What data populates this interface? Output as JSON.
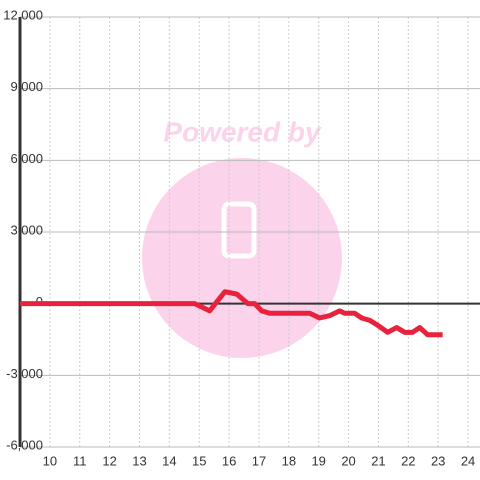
{
  "chart_data": {
    "type": "line",
    "watermark": "Powered by",
    "x": [
      9,
      14.85,
      15.35,
      15.86,
      16.26,
      16.63,
      16.86,
      17.09,
      17.36,
      18.7,
      19.03,
      19.37,
      19.7,
      19.87,
      20.2,
      20.44,
      20.71,
      20.97,
      21.31,
      21.61,
      21.88,
      22.14,
      22.38,
      22.65,
      23.15
    ],
    "series": [
      {
        "color": "#e8223d",
        "values": [
          0,
          0,
          -300,
          500,
          400,
          0,
          0,
          -300,
          -400,
          -400,
          -600,
          -500,
          -300,
          -400,
          -400,
          -600,
          -700,
          -900,
          -1200,
          -1000,
          -1200,
          -1200,
          -1000,
          -1300,
          -1300
        ]
      }
    ],
    "xlim": [
      9,
      24.4
    ],
    "xticks": [
      10,
      11,
      12,
      13,
      14,
      15,
      16,
      17,
      18,
      19,
      20,
      21,
      22,
      23,
      24
    ],
    "ylim": [
      -6000,
      12000
    ],
    "yticks": [
      {
        "value": -6000,
        "label": "-6,000"
      },
      {
        "value": -3000,
        "label": "-3,000"
      },
      0,
      {
        "value": 3000,
        "label": "3,000"
      },
      {
        "value": 6000,
        "label": "6,000"
      },
      {
        "value": 9000,
        "label": "9,000"
      },
      {
        "value": 12000,
        "label": "12,000"
      }
    ],
    "grid": true
  }
}
